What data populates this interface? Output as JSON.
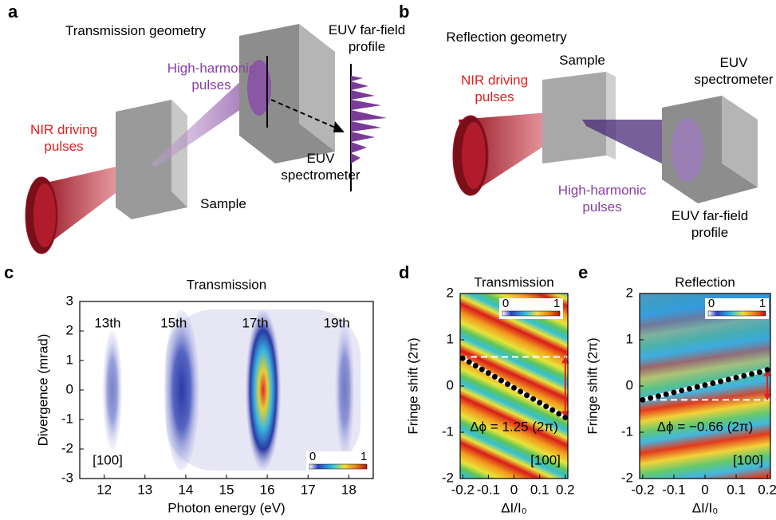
{
  "panel_a": {
    "letter": "a",
    "title": "Transmission geometry",
    "labels": {
      "harmonics": "High-harmonic pulses",
      "far_field": "EUV far-field profile",
      "nir": "NIR driving pulses",
      "spectrometer": "EUV spectrometer",
      "sample": "Sample"
    }
  },
  "panel_b": {
    "letter": "b",
    "title": "Reflection geometry",
    "labels": {
      "nir": "NIR driving pulses",
      "sample": "Sample",
      "spectrometer": "EUV spectrometer",
      "harmonics": "High-harmonic pulses",
      "far_field": "EUV far-field profile"
    }
  },
  "chart_data": [
    {
      "type": "heatmap",
      "letter": "c",
      "title": "Transmission",
      "xlabel": "Photon energy (eV)",
      "ylabel": "Divergence (mrad)",
      "xlim": [
        11.4,
        18.6
      ],
      "xticks": [
        12,
        13,
        14,
        15,
        16,
        17,
        18
      ],
      "ylim": [
        -3,
        3
      ],
      "yticks": [
        -3,
        -2,
        -1,
        0,
        1,
        2,
        3
      ],
      "x": [
        12.2,
        13.9,
        15.9,
        17.9
      ],
      "annotations": [
        "13th",
        "15th",
        "17th",
        "19th"
      ],
      "label": "[100]",
      "colorbar_ticks": [
        0,
        1
      ]
    },
    {
      "type": "line",
      "letter": "d",
      "title": "Transmission",
      "xlabel": "ΔI/I₀",
      "ylabel": "Fringe shift (2π)",
      "xlim": [
        -0.21,
        0.21
      ],
      "xticks": [
        -0.2,
        -0.1,
        0,
        0.1,
        0.2
      ],
      "ylim": [
        -2,
        2
      ],
      "yticks": [
        -2,
        -1,
        0,
        1,
        2
      ],
      "x": [
        -0.2,
        -0.175,
        -0.15,
        -0.125,
        -0.1,
        -0.075,
        -0.05,
        -0.025,
        0,
        0.025,
        0.05,
        0.075,
        0.1,
        0.125,
        0.15,
        0.175,
        0.2
      ],
      "values": [
        0.6,
        0.52,
        0.44,
        0.36,
        0.28,
        0.2,
        0.12,
        0.04,
        -0.04,
        -0.12,
        -0.2,
        -0.28,
        -0.36,
        -0.44,
        -0.52,
        -0.6,
        -0.68
      ],
      "reference_level": 0.63,
      "annotation": "Δϕ = 1.25 (2π)",
      "label": "[100]",
      "colorbar_ticks": [
        0,
        1
      ]
    },
    {
      "type": "line",
      "letter": "e",
      "title": "Reflection",
      "xlabel": "ΔI/I₀",
      "ylabel": "Fringe shift (2π)",
      "xlim": [
        -0.21,
        0.21
      ],
      "xticks": [
        -0.2,
        -0.1,
        0,
        0.1,
        0.2
      ],
      "ylim": [
        -2,
        2
      ],
      "yticks": [
        -2,
        -1,
        0,
        1,
        2
      ],
      "x": [
        -0.2,
        -0.175,
        -0.15,
        -0.125,
        -0.1,
        -0.075,
        -0.05,
        -0.025,
        0,
        0.025,
        0.05,
        0.075,
        0.1,
        0.125,
        0.15,
        0.175,
        0.2
      ],
      "values": [
        -0.3,
        -0.26,
        -0.22,
        -0.18,
        -0.14,
        -0.1,
        -0.06,
        -0.02,
        0.02,
        0.06,
        0.1,
        0.14,
        0.18,
        0.22,
        0.26,
        0.3,
        0.35
      ],
      "reference_level": -0.3,
      "annotation": "Δϕ = −0.66 (2π)",
      "label": "[100]",
      "colorbar_ticks": [
        0,
        1
      ]
    }
  ]
}
